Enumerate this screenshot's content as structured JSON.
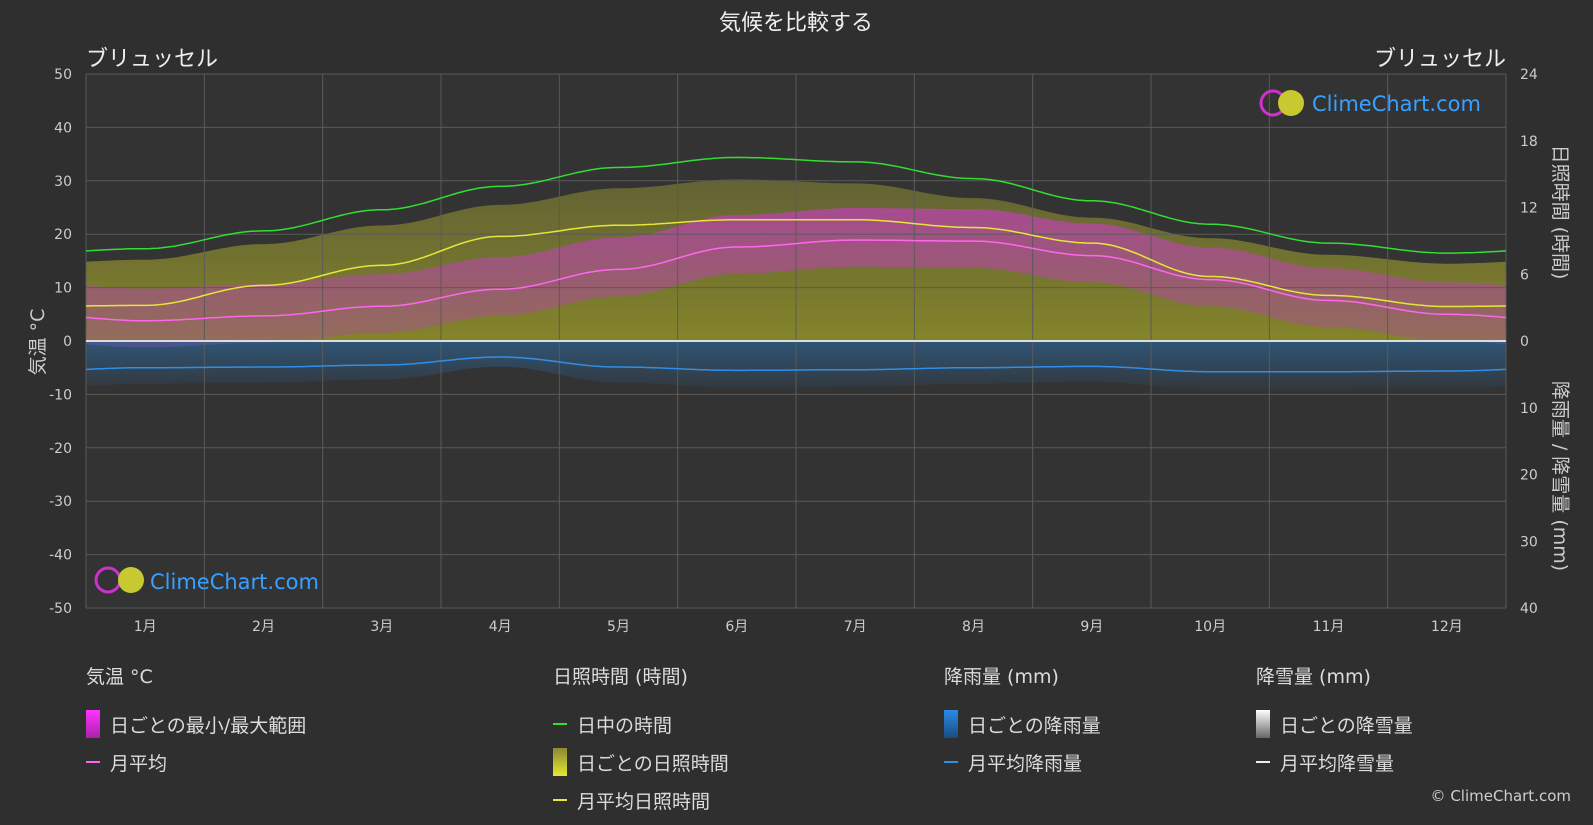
{
  "chart_data": {
    "type": "line",
    "title": "気候を比較する",
    "location_left": "ブリュッセル",
    "location_right": "ブリュッセル",
    "y_left_label": "気温 °C",
    "y_right_top_label": "日照時間 (時間)",
    "y_right_bottom_label": "降雨量 / 降雪量 (mm)",
    "y_left_ticks": [
      50,
      40,
      30,
      20,
      10,
      0,
      -10,
      -20,
      -30,
      -40,
      -50
    ],
    "y_right_top_ticks": [
      24,
      18,
      12,
      6,
      0
    ],
    "y_right_bottom_ticks": [
      10,
      20,
      30,
      40
    ],
    "y_left_range": [
      -50,
      50
    ],
    "y_right_top_range": [
      0,
      24
    ],
    "y_right_bottom_range": [
      0,
      40
    ],
    "months": [
      "1月",
      "2月",
      "3月",
      "4月",
      "5月",
      "6月",
      "7月",
      "8月",
      "9月",
      "10月",
      "11月",
      "12月"
    ],
    "grid": true,
    "series": [
      {
        "name": "日中の時間",
        "axis": "sunshine_hours",
        "color": "#33dd33",
        "values": [
          8.3,
          9.9,
          11.8,
          13.9,
          15.6,
          16.5,
          16.1,
          14.6,
          12.6,
          10.5,
          8.8,
          7.9
        ]
      },
      {
        "name": "月平均日照時間",
        "axis": "sunshine_hours",
        "color": "#e6e63a",
        "values": [
          3.2,
          5.0,
          6.8,
          9.4,
          10.4,
          10.9,
          10.9,
          10.2,
          8.8,
          5.8,
          4.1,
          3.1
        ]
      },
      {
        "name": "月平均",
        "axis": "temperature_c",
        "color": "#ff66ee",
        "values": [
          3.8,
          4.7,
          6.5,
          9.7,
          13.4,
          17.6,
          18.9,
          18.7,
          16.0,
          11.5,
          7.6,
          5.0
        ]
      },
      {
        "name": "月平均降雨量",
        "axis": "precipitation_mm",
        "color": "#2f8fe6",
        "values": [
          4.0,
          3.9,
          3.6,
          2.4,
          3.9,
          4.4,
          4.3,
          4.0,
          3.8,
          4.6,
          4.6,
          4.5
        ]
      }
    ]
  },
  "legend": {
    "temp": {
      "head": "気温 °C",
      "range": "日ごとの最小/最大範囲",
      "avg": "月平均"
    },
    "sun": {
      "head": "日照時間 (時間)",
      "daylight": "日中の時間",
      "daily": "日ごとの日照時間",
      "avg": "月平均日照時間"
    },
    "rain": {
      "head": "降雨量 (mm)",
      "daily": "日ごとの降雨量",
      "avg": "月平均降雨量"
    },
    "snow": {
      "head": "降雪量 (mm)",
      "daily": "日ごとの降雪量",
      "avg": "月平均降雪量"
    }
  },
  "brand": "ClimeChart.com",
  "copyright": "© ClimeChart.com",
  "colors": {
    "background": "#2f2f2f",
    "brand": "#3aa0ff",
    "range": "#dd22dd",
    "sun_fill": "#c8c830",
    "rain_bar": "#1f6fb8",
    "snow_bar": "#bfbfbf"
  }
}
